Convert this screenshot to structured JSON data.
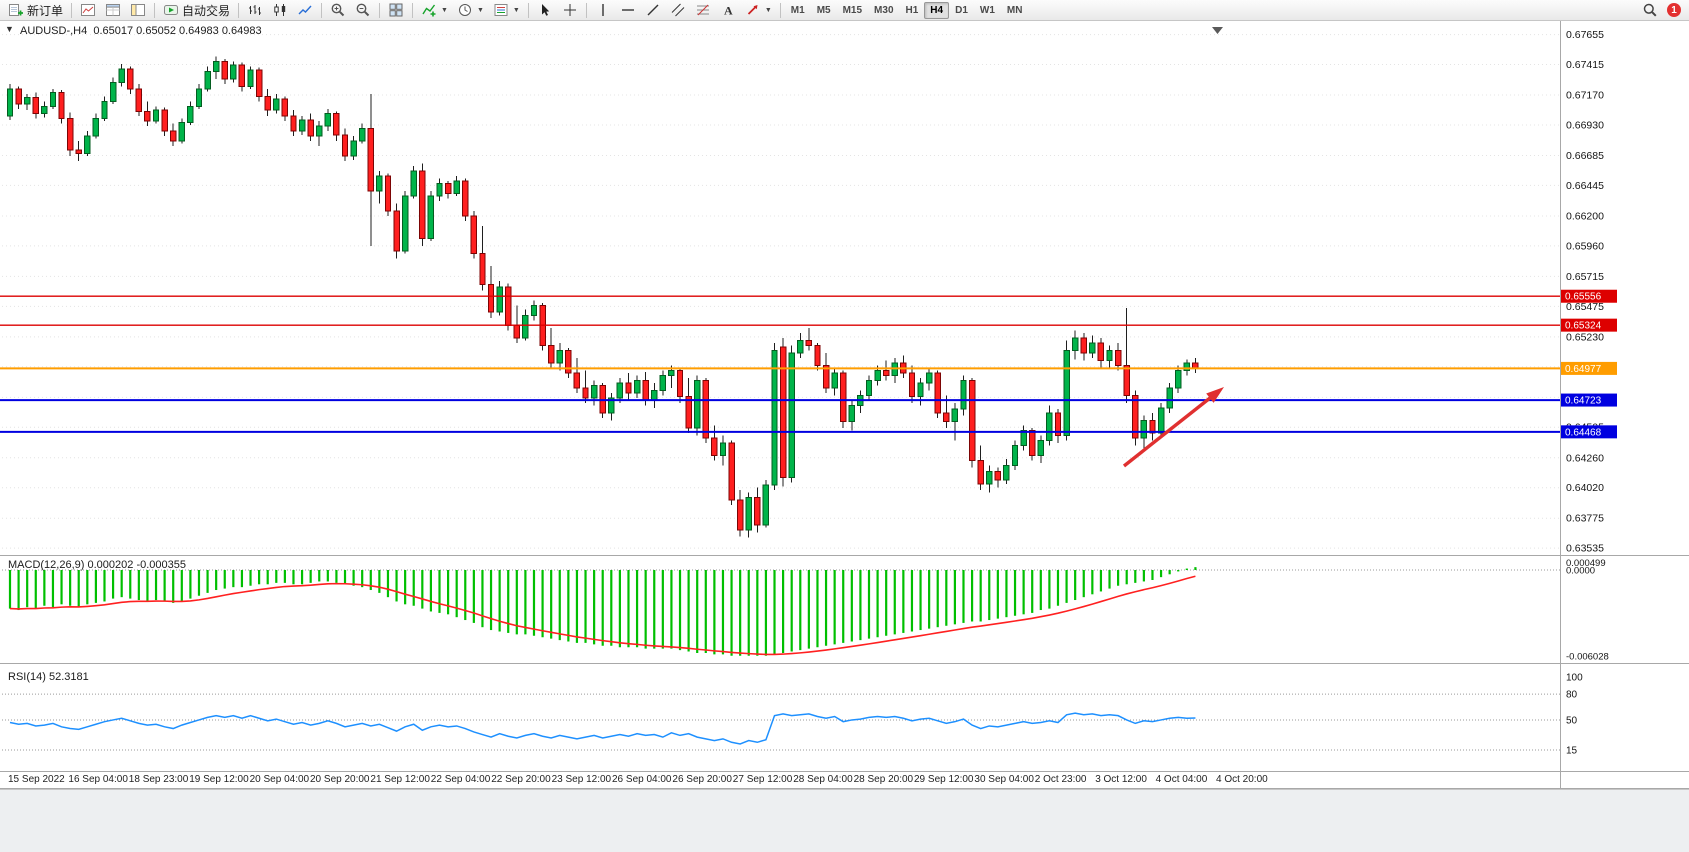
{
  "toolbar": {
    "new_order": "新订单",
    "autotrading": "自动交易",
    "timeframes": [
      "M1",
      "M5",
      "M15",
      "M30",
      "H1",
      "H4",
      "D1",
      "W1",
      "MN"
    ],
    "active_timeframe": "H4",
    "notification_badge": "1"
  },
  "chart": {
    "title": "AUDUSD-,H4",
    "quotes": "0.65017 0.65052 0.64983 0.64983",
    "price_axis": [
      "0.67655",
      "0.67415",
      "0.67170",
      "0.66930",
      "0.66685",
      "0.66445",
      "0.66200",
      "0.65960",
      "0.65715",
      "0.65475",
      "0.65230",
      "0.64990",
      "0.64745",
      "0.64505",
      "0.64260",
      "0.64020",
      "0.63775",
      "0.63535"
    ],
    "hlines": [
      {
        "price": 0.65556,
        "label": "0.65556",
        "color": "#dd0000",
        "width": 1.4
      },
      {
        "price": 0.65324,
        "label": "0.65324",
        "color": "#dd0000",
        "width": 1.4
      },
      {
        "price": 0.64977,
        "label": "0.64977",
        "color": "#ff9d00",
        "width": 2
      },
      {
        "price": 0.64723,
        "label": "0.64723",
        "color": "#0000e0",
        "width": 2
      },
      {
        "price": 0.64468,
        "label": "0.64468",
        "color": "#0000e0",
        "width": 2
      }
    ],
    "colors": {
      "bull": "#00b44a",
      "bear": "#ff1f1f",
      "wick": "#1f1f1f"
    },
    "candles": [
      [
        6700,
        6726,
        6697,
        6722
      ],
      [
        6722,
        6724,
        6706,
        6710
      ],
      [
        6710,
        6718,
        6705,
        6715
      ],
      [
        6715,
        6719,
        6698,
        6702
      ],
      [
        6702,
        6712,
        6699,
        6708
      ],
      [
        6708,
        6722,
        6706,
        6719
      ],
      [
        6719,
        6721,
        6694,
        6698
      ],
      [
        6698,
        6703,
        6668,
        6673
      ],
      [
        6673,
        6680,
        6664,
        6670
      ],
      [
        6670,
        6688,
        6668,
        6684
      ],
      [
        6684,
        6702,
        6682,
        6698
      ],
      [
        6698,
        6716,
        6696,
        6712
      ],
      [
        6712,
        6731,
        6710,
        6727
      ],
      [
        6727,
        6742,
        6724,
        6738
      ],
      [
        6738,
        6740,
        6718,
        6722
      ],
      [
        6722,
        6726,
        6700,
        6704
      ],
      [
        6704,
        6712,
        6692,
        6696
      ],
      [
        6696,
        6708,
        6694,
        6705
      ],
      [
        6705,
        6707,
        6684,
        6688
      ],
      [
        6688,
        6694,
        6676,
        6680
      ],
      [
        6680,
        6698,
        6678,
        6695
      ],
      [
        6695,
        6712,
        6693,
        6708
      ],
      [
        6708,
        6726,
        6706,
        6722
      ],
      [
        6722,
        6740,
        6720,
        6736
      ],
      [
        6736,
        6748,
        6730,
        6744
      ],
      [
        6744,
        6746,
        6726,
        6730
      ],
      [
        6730,
        6744,
        6727,
        6741
      ],
      [
        6741,
        6743,
        6720,
        6724
      ],
      [
        6724,
        6740,
        6722,
        6737
      ],
      [
        6737,
        6739,
        6712,
        6716
      ],
      [
        6716,
        6722,
        6700,
        6705
      ],
      [
        6705,
        6718,
        6702,
        6714
      ],
      [
        6714,
        6716,
        6696,
        6700
      ],
      [
        6700,
        6705,
        6684,
        6688
      ],
      [
        6688,
        6700,
        6685,
        6697
      ],
      [
        6697,
        6702,
        6680,
        6684
      ],
      [
        6684,
        6696,
        6676,
        6692
      ],
      [
        6692,
        6706,
        6688,
        6702
      ],
      [
        6702,
        6704,
        6680,
        6685
      ],
      [
        6685,
        6690,
        6664,
        6668
      ],
      [
        6668,
        6684,
        6665,
        6680
      ],
      [
        6680,
        6694,
        6678,
        6690
      ],
      [
        6690,
        6718,
        6596,
        6640
      ],
      [
        6640,
        6656,
        6630,
        6652
      ],
      [
        6652,
        6654,
        6620,
        6624
      ],
      [
        6624,
        6630,
        6586,
        6592
      ],
      [
        6592,
        6640,
        6590,
        6636
      ],
      [
        6636,
        6660,
        6634,
        6656
      ],
      [
        6656,
        6662,
        6596,
        6602
      ],
      [
        6602,
        6640,
        6600,
        6636
      ],
      [
        6636,
        6650,
        6632,
        6646
      ],
      [
        6646,
        6648,
        6634,
        6638
      ],
      [
        6638,
        6652,
        6636,
        6648
      ],
      [
        6648,
        6650,
        6616,
        6620
      ],
      [
        6620,
        6624,
        6586,
        6590
      ],
      [
        6590,
        6612,
        6560,
        6565
      ],
      [
        6565,
        6580,
        6538,
        6543
      ],
      [
        6543,
        6568,
        6540,
        6563
      ],
      [
        6563,
        6566,
        6528,
        6532
      ],
      [
        6532,
        6548,
        6518,
        6522
      ],
      [
        6522,
        6545,
        6520,
        6540
      ],
      [
        6540,
        6552,
        6536,
        6548
      ],
      [
        6548,
        6550,
        6512,
        6516
      ],
      [
        6516,
        6530,
        6498,
        6502
      ],
      [
        6502,
        6518,
        6496,
        6512
      ],
      [
        6512,
        6514,
        6490,
        6494
      ],
      [
        6494,
        6506,
        6478,
        6482
      ],
      [
        6482,
        6496,
        6470,
        6474
      ],
      [
        6474,
        6488,
        6468,
        6484
      ],
      [
        6484,
        6486,
        6458,
        6462
      ],
      [
        6462,
        6478,
        6456,
        6474
      ],
      [
        6474,
        6490,
        6470,
        6486
      ],
      [
        6486,
        6494,
        6472,
        6478
      ],
      [
        6478,
        6492,
        6474,
        6488
      ],
      [
        6488,
        6495,
        6468,
        6472
      ],
      [
        6472,
        6486,
        6466,
        6480
      ],
      [
        6480,
        6496,
        6476,
        6492
      ],
      [
        6492,
        6500,
        6482,
        6496
      ],
      [
        6496,
        6498,
        6470,
        6475
      ],
      [
        6475,
        6490,
        6446,
        6450
      ],
      [
        6450,
        6492,
        6444,
        6488
      ],
      [
        6488,
        6490,
        6438,
        6442
      ],
      [
        6442,
        6452,
        6424,
        6428
      ],
      [
        6428,
        6444,
        6420,
        6438
      ],
      [
        6438,
        6440,
        6388,
        6392
      ],
      [
        6392,
        6400,
        6363,
        6368
      ],
      [
        6368,
        6398,
        6362,
        6394
      ],
      [
        6394,
        6402,
        6366,
        6372
      ],
      [
        6372,
        6408,
        6370,
        6404
      ],
      [
        6404,
        6518,
        6400,
        6512
      ],
      [
        6515,
        6522,
        6403,
        6410
      ],
      [
        6410,
        6516,
        6406,
        6510
      ],
      [
        6510,
        6526,
        6506,
        6520
      ],
      [
        6520,
        6530,
        6512,
        6516
      ],
      [
        6516,
        6518,
        6496,
        6500
      ],
      [
        6500,
        6510,
        6478,
        6482
      ],
      [
        6482,
        6498,
        6476,
        6494
      ],
      [
        6494,
        6496,
        6450,
        6455
      ],
      [
        6455,
        6472,
        6448,
        6468
      ],
      [
        6468,
        6480,
        6462,
        6476
      ],
      [
        6476,
        6492,
        6472,
        6488
      ],
      [
        6488,
        6500,
        6484,
        6496
      ],
      [
        6496,
        6504,
        6488,
        6492
      ],
      [
        6492,
        6506,
        6486,
        6502
      ],
      [
        6502,
        6508,
        6490,
        6494
      ],
      [
        6494,
        6500,
        6470,
        6475
      ],
      [
        6475,
        6490,
        6468,
        6486
      ],
      [
        6486,
        6498,
        6480,
        6494
      ],
      [
        6494,
        6496,
        6458,
        6462
      ],
      [
        6462,
        6476,
        6450,
        6455
      ],
      [
        6455,
        6470,
        6440,
        6465
      ],
      [
        6465,
        6492,
        6460,
        6488
      ],
      [
        6488,
        6490,
        6418,
        6424
      ],
      [
        6424,
        6436,
        6400,
        6405
      ],
      [
        6405,
        6420,
        6398,
        6415
      ],
      [
        6415,
        6418,
        6402,
        6408
      ],
      [
        6408,
        6425,
        6405,
        6420
      ],
      [
        6420,
        6440,
        6416,
        6436
      ],
      [
        6436,
        6452,
        6432,
        6448
      ],
      [
        6448,
        6450,
        6424,
        6428
      ],
      [
        6428,
        6444,
        6422,
        6440
      ],
      [
        6440,
        6468,
        6436,
        6462
      ],
      [
        6462,
        6465,
        6438,
        6444
      ],
      [
        6444,
        6520,
        6440,
        6512
      ],
      [
        6512,
        6528,
        6505,
        6522
      ],
      [
        6522,
        6526,
        6504,
        6510
      ],
      [
        6510,
        6524,
        6506,
        6518
      ],
      [
        6518,
        6522,
        6498,
        6504
      ],
      [
        6504,
        6516,
        6498,
        6512
      ],
      [
        6512,
        6518,
        6496,
        6500
      ],
      [
        6500,
        6546,
        6470,
        6476
      ],
      [
        6476,
        6480,
        6436,
        6442
      ],
      [
        6442,
        6460,
        6432,
        6456
      ],
      [
        6456,
        6462,
        6440,
        6446
      ],
      [
        6446,
        6470,
        6444,
        6466
      ],
      [
        6466,
        6486,
        6462,
        6482
      ],
      [
        6482,
        6500,
        6478,
        6496
      ],
      [
        6496,
        6505,
        6492,
        6502
      ],
      [
        6502,
        6506,
        6494,
        6498
      ]
    ],
    "time_axis": [
      "15 Sep 2022",
      "16 Sep 04:00",
      "18 Sep 23:00",
      "19 Sep 12:00",
      "20 Sep 04:00",
      "20 Sep 20:00",
      "21 Sep 12:00",
      "22 Sep 04:00",
      "22 Sep 20:00",
      "23 Sep 12:00",
      "26 Sep 04:00",
      "26 Sep 20:00",
      "27 Sep 12:00",
      "28 Sep 04:00",
      "28 Sep 20:00",
      "29 Sep 12:00",
      "30 Sep 04:00",
      "2 Oct 23:00",
      "3 Oct 12:00",
      "4 Oct 04:00",
      "4 Oct 20:00"
    ]
  },
  "macd": {
    "label": "MACD(12,26,9)",
    "value": "0.000202",
    "signal_value": "-0.000355",
    "axis_labels": [
      "0.000499",
      "0.0000",
      "-0.006028"
    ],
    "colors": {
      "histogram": "#00bf00",
      "signal": "#ff2020"
    },
    "values": [
      -27,
      -28,
      -26,
      -27,
      -25,
      -26,
      -24,
      -25,
      -26,
      -24,
      -23,
      -22,
      -20,
      -19,
      -20,
      -21,
      -22,
      -21,
      -22,
      -23,
      -22,
      -20,
      -18,
      -16,
      -14,
      -13,
      -12,
      -12,
      -11,
      -10,
      -10,
      -9,
      -9,
      -10,
      -10,
      -9,
      -8,
      -8,
      -9,
      -10,
      -11,
      -12,
      -14,
      -16,
      -19,
      -22,
      -24,
      -25,
      -27,
      -29,
      -30,
      -31,
      -33,
      -35,
      -37,
      -40,
      -42,
      -43,
      -44,
      -45,
      -45,
      -46,
      -47,
      -48,
      -49,
      -50,
      -51,
      -51,
      -52,
      -53,
      -53,
      -54,
      -54,
      -54,
      -55,
      -55,
      -55,
      -55,
      -56,
      -57,
      -58,
      -58,
      -59,
      -59,
      -60,
      -60,
      -60,
      -60,
      -60,
      -59,
      -58,
      -57,
      -56,
      -55,
      -54,
      -53,
      -52,
      -51,
      -50,
      -49,
      -48,
      -47,
      -46,
      -45,
      -44,
      -43,
      -42,
      -41,
      -40,
      -39,
      -38,
      -37,
      -36,
      -36,
      -35,
      -34,
      -33,
      -32,
      -31,
      -30,
      -28,
      -27,
      -25,
      -23,
      -21,
      -19,
      -17,
      -15,
      -13,
      -11,
      -10,
      -9,
      -8,
      -7,
      -5,
      -3,
      -1,
      1,
      2
    ]
  },
  "rsi": {
    "label": "RSI(14)",
    "value": "52.3181",
    "axis_labels": [
      "100",
      "80",
      "50",
      "15"
    ],
    "levels": [
      80,
      50,
      15
    ],
    "color": "#1e90ff",
    "values": [
      47,
      45,
      46,
      43,
      44,
      46,
      42,
      40,
      39,
      42,
      45,
      48,
      50,
      52,
      49,
      46,
      44,
      45,
      42,
      40,
      44,
      47,
      50,
      53,
      55,
      53,
      55,
      52,
      55,
      52,
      49,
      51,
      48,
      45,
      47,
      44,
      46,
      49,
      46,
      42,
      44,
      46,
      43,
      45,
      41,
      37,
      42,
      45,
      38,
      42,
      44,
      42,
      43,
      40,
      36,
      33,
      30,
      34,
      31,
      29,
      32,
      34,
      31,
      29,
      32,
      30,
      28,
      30,
      32,
      29,
      31,
      33,
      31,
      34,
      32,
      33,
      30,
      35,
      32,
      34,
      30,
      28,
      26,
      28,
      24,
      22,
      26,
      24,
      27,
      55,
      57,
      55,
      56,
      57,
      54,
      52,
      54,
      48,
      50,
      51,
      53,
      54,
      53,
      54,
      52,
      49,
      51,
      52,
      49,
      46,
      48,
      51,
      44,
      40,
      43,
      42,
      44,
      46,
      48,
      46,
      47,
      49,
      47,
      56,
      58,
      56,
      57,
      55,
      56,
      55,
      50,
      46,
      49,
      48,
      50,
      52,
      53,
      52,
      52.3
    ]
  },
  "arrow": {
    "color": "#e03030"
  }
}
